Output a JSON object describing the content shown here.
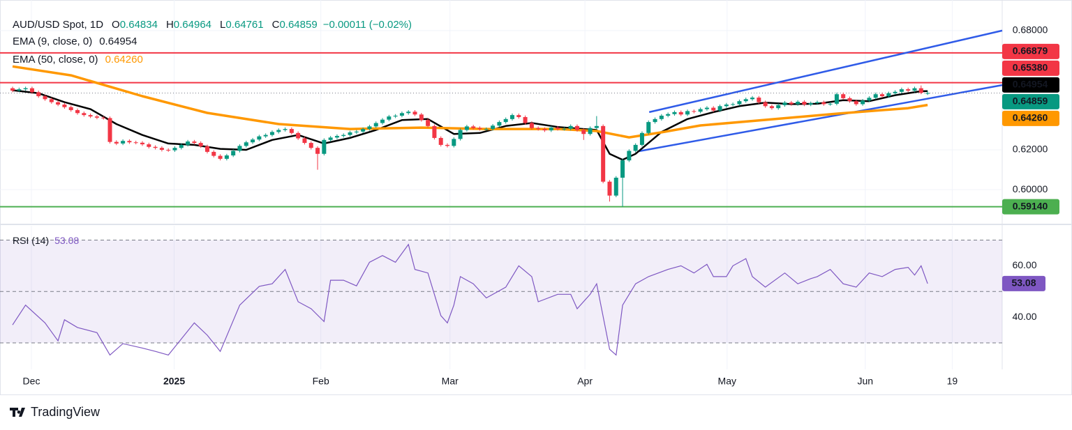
{
  "chart_data": [
    {
      "type": "candlestick",
      "title": "AUD/USD Spot, 1D",
      "ohlc": [
        {
          "key": "O",
          "value": 0.64834
        },
        {
          "key": "H",
          "value": 0.64964
        },
        {
          "key": "L",
          "value": 0.64761
        },
        {
          "key": "C",
          "value": 0.64859
        }
      ],
      "change": "−0.00011 (−0.02%)",
      "up_color": "#089981",
      "down_color": "#f23645",
      "candles": {
        "open": [
          0.651,
          0.6498,
          0.6505,
          0.651,
          0.649,
          0.647,
          0.6455,
          0.644,
          0.6428,
          0.6415,
          0.64,
          0.6385,
          0.6375,
          0.6368,
          0.6362,
          0.636,
          0.624,
          0.6232,
          0.6245,
          0.6238,
          0.6236,
          0.6228,
          0.6215,
          0.621,
          0.62,
          0.6198,
          0.621,
          0.6225,
          0.6242,
          0.6235,
          0.6218,
          0.619,
          0.617,
          0.6155,
          0.6172,
          0.6195,
          0.622,
          0.6238,
          0.6252,
          0.6268,
          0.6275,
          0.629,
          0.63,
          0.6305,
          0.6285,
          0.6258,
          0.6235,
          0.621,
          0.618,
          0.625,
          0.6262,
          0.627,
          0.6275,
          0.6288,
          0.6292,
          0.6305,
          0.6318,
          0.6335,
          0.6352,
          0.6368,
          0.6372,
          0.6385,
          0.6392,
          0.6378,
          0.635,
          0.632,
          0.626,
          0.6225,
          0.622,
          0.6255,
          0.63,
          0.6318,
          0.631,
          0.6305,
          0.6305,
          0.6322,
          0.634,
          0.6355,
          0.6375,
          0.6365,
          0.6335,
          0.631,
          0.6305,
          0.6298,
          0.6312,
          0.6305,
          0.6306,
          0.632,
          0.63,
          0.628,
          0.631,
          0.632,
          0.604,
          0.597,
          0.606,
          0.6147,
          0.6195,
          0.6225,
          0.6285,
          0.634,
          0.6355,
          0.6372,
          0.638,
          0.639,
          0.6378,
          0.6395,
          0.6392,
          0.6405,
          0.6412,
          0.6398,
          0.642,
          0.6428,
          0.643,
          0.6445,
          0.6455,
          0.6463,
          0.644,
          0.642,
          0.641,
          0.6425,
          0.6438,
          0.643,
          0.6442,
          0.6428,
          0.6435,
          0.644,
          0.643,
          0.6432,
          0.648,
          0.646,
          0.6445,
          0.643,
          0.6448,
          0.6462,
          0.648,
          0.647,
          0.6485,
          0.6492,
          0.6505,
          0.6498,
          0.651,
          0.64834
        ],
        "high": [
          0.6518,
          0.6513,
          0.6518,
          0.6518,
          0.6498,
          0.6478,
          0.6463,
          0.6448,
          0.6436,
          0.6423,
          0.6408,
          0.6393,
          0.6383,
          0.6376,
          0.637,
          0.6368,
          0.6248,
          0.6253,
          0.6253,
          0.6246,
          0.6244,
          0.6236,
          0.6223,
          0.6218,
          0.6208,
          0.6218,
          0.6233,
          0.625,
          0.625,
          0.6243,
          0.6226,
          0.6198,
          0.6178,
          0.618,
          0.6203,
          0.6228,
          0.6246,
          0.626,
          0.6276,
          0.6283,
          0.6298,
          0.6308,
          0.6313,
          0.6313,
          0.6293,
          0.6266,
          0.6243,
          0.6218,
          0.6258,
          0.627,
          0.6278,
          0.6283,
          0.6296,
          0.63,
          0.6313,
          0.6326,
          0.6343,
          0.636,
          0.6376,
          0.638,
          0.6393,
          0.64,
          0.64,
          0.6386,
          0.6358,
          0.6328,
          0.6268,
          0.6233,
          0.6263,
          0.6308,
          0.6326,
          0.6326,
          0.6318,
          0.6313,
          0.633,
          0.6348,
          0.6363,
          0.6383,
          0.6383,
          0.6373,
          0.6343,
          0.6318,
          0.6313,
          0.632,
          0.632,
          0.6314,
          0.6328,
          0.6328,
          0.6308,
          0.6318,
          0.637,
          0.6328,
          0.6048,
          0.6068,
          0.6155,
          0.6203,
          0.6233,
          0.6293,
          0.6348,
          0.6363,
          0.638,
          0.6388,
          0.6398,
          0.6398,
          0.6403,
          0.6403,
          0.6413,
          0.642,
          0.642,
          0.6428,
          0.6436,
          0.6438,
          0.6453,
          0.6463,
          0.6471,
          0.6471,
          0.6448,
          0.6428,
          0.6433,
          0.6446,
          0.6446,
          0.645,
          0.645,
          0.6443,
          0.6448,
          0.6448,
          0.644,
          0.6488,
          0.6488,
          0.6468,
          0.6453,
          0.6456,
          0.647,
          0.6488,
          0.6488,
          0.6493,
          0.65,
          0.6513,
          0.6513,
          0.6518,
          0.6524,
          0.64964
        ],
        "low": [
          0.649,
          0.649,
          0.6497,
          0.6482,
          0.6462,
          0.6447,
          0.6432,
          0.642,
          0.6407,
          0.6392,
          0.6377,
          0.6367,
          0.636,
          0.6354,
          0.6352,
          0.6232,
          0.6224,
          0.6224,
          0.623,
          0.6228,
          0.622,
          0.6207,
          0.6202,
          0.6192,
          0.619,
          0.619,
          0.6202,
          0.6217,
          0.6227,
          0.621,
          0.6182,
          0.6162,
          0.6147,
          0.6147,
          0.6164,
          0.6187,
          0.6212,
          0.623,
          0.6244,
          0.626,
          0.6267,
          0.6282,
          0.6292,
          0.6277,
          0.625,
          0.6227,
          0.6202,
          0.61,
          0.6172,
          0.6242,
          0.6254,
          0.6262,
          0.6267,
          0.628,
          0.6284,
          0.6297,
          0.631,
          0.6327,
          0.6344,
          0.636,
          0.6364,
          0.6377,
          0.637,
          0.6342,
          0.6312,
          0.6252,
          0.6217,
          0.6212,
          0.6212,
          0.6247,
          0.6292,
          0.6302,
          0.6297,
          0.6297,
          0.6297,
          0.6314,
          0.6332,
          0.6347,
          0.6357,
          0.6327,
          0.6302,
          0.6297,
          0.629,
          0.629,
          0.6297,
          0.6297,
          0.6298,
          0.6292,
          0.625,
          0.6272,
          0.6302,
          0.6032,
          0.594,
          0.5962,
          0.5914,
          0.6139,
          0.6187,
          0.6217,
          0.6277,
          0.6332,
          0.6347,
          0.6364,
          0.6372,
          0.637,
          0.637,
          0.6384,
          0.6384,
          0.6397,
          0.639,
          0.639,
          0.6412,
          0.642,
          0.6422,
          0.6437,
          0.6447,
          0.6432,
          0.6412,
          0.6402,
          0.6402,
          0.6417,
          0.6422,
          0.6422,
          0.642,
          0.642,
          0.6427,
          0.6422,
          0.6422,
          0.6424,
          0.6452,
          0.6437,
          0.6422,
          0.6422,
          0.644,
          0.6454,
          0.6462,
          0.6462,
          0.6477,
          0.6484,
          0.649,
          0.649,
          0.648,
          0.64761
        ],
        "close": [
          0.6498,
          0.6505,
          0.651,
          0.649,
          0.647,
          0.6455,
          0.644,
          0.6428,
          0.6415,
          0.64,
          0.6385,
          0.6375,
          0.6368,
          0.6362,
          0.636,
          0.624,
          0.6232,
          0.6245,
          0.6238,
          0.6236,
          0.6228,
          0.6215,
          0.621,
          0.62,
          0.6198,
          0.621,
          0.6225,
          0.6242,
          0.6235,
          0.6218,
          0.619,
          0.617,
          0.6155,
          0.6172,
          0.6195,
          0.622,
          0.6238,
          0.6252,
          0.6268,
          0.6275,
          0.629,
          0.63,
          0.6305,
          0.6285,
          0.6258,
          0.6235,
          0.621,
          0.618,
          0.625,
          0.6262,
          0.627,
          0.6275,
          0.6288,
          0.6292,
          0.6305,
          0.6318,
          0.6335,
          0.6352,
          0.6368,
          0.6372,
          0.6385,
          0.6392,
          0.6378,
          0.635,
          0.632,
          0.626,
          0.6225,
          0.622,
          0.6255,
          0.63,
          0.6318,
          0.631,
          0.6305,
          0.6305,
          0.6322,
          0.634,
          0.6355,
          0.6375,
          0.6365,
          0.6335,
          0.631,
          0.6305,
          0.6298,
          0.6312,
          0.6305,
          0.6306,
          0.632,
          0.63,
          0.628,
          0.631,
          0.632,
          0.604,
          0.597,
          0.606,
          0.6147,
          0.6195,
          0.6225,
          0.6285,
          0.634,
          0.6355,
          0.6372,
          0.638,
          0.639,
          0.6378,
          0.6395,
          0.6392,
          0.6405,
          0.6412,
          0.6398,
          0.642,
          0.6428,
          0.643,
          0.6445,
          0.6455,
          0.6463,
          0.644,
          0.642,
          0.641,
          0.6425,
          0.6438,
          0.643,
          0.6442,
          0.6428,
          0.6435,
          0.644,
          0.643,
          0.6432,
          0.648,
          0.646,
          0.6445,
          0.643,
          0.6448,
          0.6462,
          0.648,
          0.647,
          0.6485,
          0.6492,
          0.6505,
          0.6498,
          0.651,
          0.6487,
          0.64859
        ]
      },
      "series": [
        {
          "name": "EMA (9, close, 0)",
          "color": "#000000",
          "x": [
            0,
            4,
            8,
            12,
            16,
            20,
            24,
            28,
            32,
            36,
            40,
            44,
            48,
            52,
            56,
            60,
            64,
            68,
            72,
            76,
            80,
            84,
            88,
            90,
            92,
            94,
            96,
            100,
            104,
            108,
            112,
            116,
            120,
            124,
            128,
            132,
            136,
            140,
            141
          ],
          "values": [
            0.65,
            0.6485,
            0.644,
            0.6405,
            0.633,
            0.6275,
            0.6232,
            0.6225,
            0.6205,
            0.62,
            0.625,
            0.6275,
            0.6232,
            0.626,
            0.63,
            0.635,
            0.6355,
            0.628,
            0.6285,
            0.632,
            0.6335,
            0.6315,
            0.6305,
            0.63,
            0.618,
            0.615,
            0.618,
            0.629,
            0.6355,
            0.639,
            0.642,
            0.6438,
            0.643,
            0.6432,
            0.645,
            0.6445,
            0.6475,
            0.6495,
            0.64954
          ]
        },
        {
          "name": "EMA (50, close, 0)",
          "color": "#ff9800",
          "x": [
            0,
            9,
            20,
            30,
            41,
            52,
            63,
            73,
            84,
            90,
            95,
            100,
            106,
            116,
            127,
            138,
            141
          ],
          "values": [
            0.662,
            0.6575,
            0.647,
            0.6386,
            0.633,
            0.6305,
            0.6312,
            0.6305,
            0.6305,
            0.6295,
            0.6263,
            0.6288,
            0.6323,
            0.6351,
            0.6382,
            0.641,
            0.6426
          ],
          "last_label": "0.64260"
        }
      ],
      "levels": [
        {
          "value": 0.66879,
          "label": "0.66879",
          "color": "#f23645"
        },
        {
          "value": 0.6538,
          "label": "0.65380",
          "color": "#f23645"
        },
        {
          "value": 0.5914,
          "label": "0.59140",
          "color": "#4caf50"
        }
      ],
      "trendlines": [
        {
          "x": [
            98.1,
            152.5
          ],
          "y": [
            0.639,
            0.68
          ],
          "color": "#2f5be8"
        },
        {
          "x": [
            96.5,
            152.5
          ],
          "y": [
            0.6193,
            0.6526
          ],
          "color": "#2f5be8"
        }
      ],
      "xlim": [
        -1.94,
        152.5
      ],
      "ylim": [
        0.5832,
        0.6954
      ],
      "yticks": [
        {
          "value": 0.6,
          "label": "0.60000"
        },
        {
          "value": 0.62,
          "label": "0.62000"
        },
        {
          "value": 0.68,
          "label": "0.68000"
        }
      ],
      "xticks": [
        {
          "value": 2.9,
          "label": "Dec"
        },
        {
          "value": 24.9,
          "label": "2025",
          "bold": true
        },
        {
          "value": 47.5,
          "label": "Feb"
        },
        {
          "value": 67.4,
          "label": "Mar"
        },
        {
          "value": 88.2,
          "label": "Apr"
        },
        {
          "value": 110.1,
          "label": "May"
        },
        {
          "value": 131.4,
          "label": "Jun"
        },
        {
          "value": 144.8,
          "label": "19"
        }
      ],
      "grid": true
    },
    {
      "type": "line",
      "series": [
        {
          "name": "RSI (14)",
          "color": "#7e57c2",
          "x": [
            0,
            2,
            5,
            7,
            8,
            10,
            13,
            15,
            17,
            20,
            22,
            24,
            28,
            30,
            32,
            35,
            38,
            40,
            42,
            44,
            46,
            48,
            49,
            51,
            53,
            55,
            57,
            59,
            61,
            62,
            64,
            66,
            67,
            68,
            69,
            71,
            73,
            76,
            78,
            80,
            81,
            84,
            86,
            87,
            89,
            90,
            92,
            93,
            94,
            96,
            98,
            101,
            103,
            105,
            107,
            108,
            110,
            111,
            113,
            114,
            116,
            119,
            121,
            123,
            124,
            126,
            128,
            130,
            132,
            134,
            136,
            138,
            139,
            140,
            141
          ],
          "values": [
            37,
            44.7,
            37.8,
            30.8,
            39,
            36,
            34,
            25.3,
            29.7,
            28,
            26.7,
            25.3,
            37.8,
            33,
            26.7,
            44.7,
            52,
            53,
            58.6,
            46,
            43.3,
            38.3,
            54.4,
            54.4,
            52.2,
            61.4,
            64,
            61.4,
            68.3,
            58.6,
            57.2,
            40.6,
            37.8,
            44.7,
            55.8,
            53,
            47.5,
            51.7,
            60,
            55.8,
            46,
            48.9,
            48.9,
            43.3,
            48.9,
            53,
            27.5,
            25.3,
            44.7,
            53,
            55.8,
            58.6,
            60,
            57.2,
            60.6,
            55.8,
            55.8,
            60,
            62.8,
            55.8,
            51.7,
            57.2,
            53,
            55,
            55.8,
            58.6,
            53,
            51.7,
            57.2,
            55.8,
            58.6,
            59.4,
            56.4,
            60,
            53.08
          ]
        }
      ],
      "bands": [
        30,
        50,
        70
      ],
      "band_color": "#7e57c2",
      "ylim": [
        19.7,
        75.3
      ],
      "yticks": [
        {
          "value": 40,
          "label": "40.00"
        },
        {
          "value": 60,
          "label": "60.00"
        }
      ]
    }
  ],
  "footer": {
    "brand": "TradingView"
  }
}
